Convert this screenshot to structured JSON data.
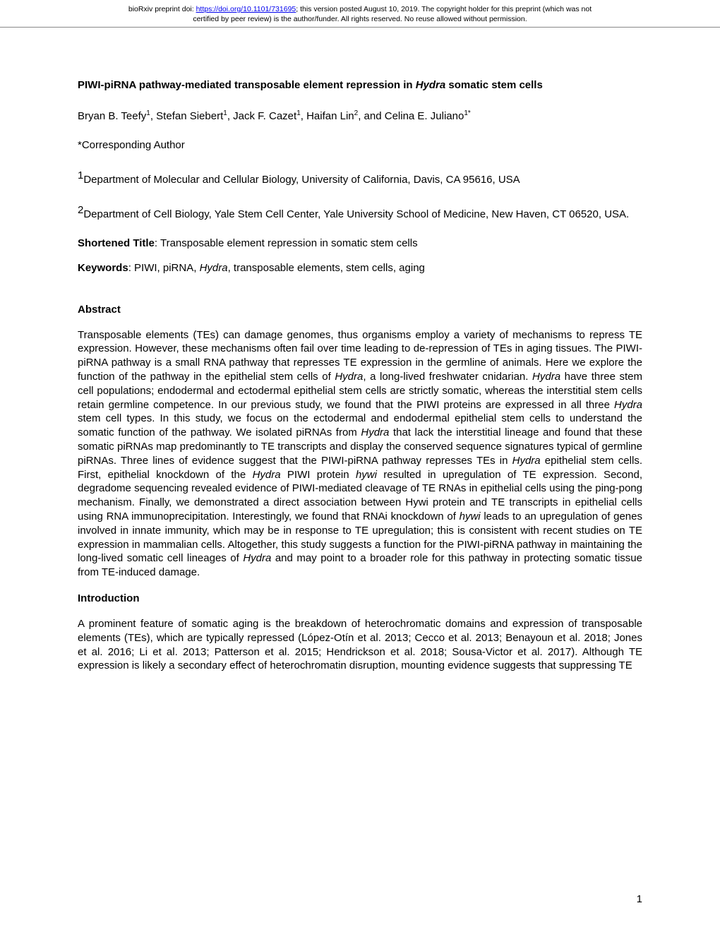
{
  "header": {
    "line1_pre": "bioRxiv preprint doi: ",
    "doi_url": "https://doi.org/10.1101/731695",
    "line1_post": "; this version posted August 10, 2019. The copyright holder for this preprint (which was not",
    "line2": "certified by peer review) is the author/funder. All rights reserved. No reuse allowed without permission."
  },
  "title": {
    "part1": "PIWI-piRNA pathway-mediated transposable element repression in ",
    "italic": "Hydra",
    "part2": " somatic stem cells"
  },
  "authors": {
    "a1": "Bryan B. Teefy",
    "s1": "1",
    "a2": ", Stefan Siebert",
    "s2": "1",
    "a3": ", Jack F. Cazet",
    "s3": "1",
    "a4": ", Haifan Lin",
    "s4": "2",
    "a5": ", and Celina E. Juliano",
    "s5": "1*"
  },
  "corresponding": "*Corresponding Author",
  "affil1": {
    "num": "1",
    "text": "Department of Molecular and Cellular Biology, University of California, Davis, CA 95616, USA"
  },
  "affil2": {
    "num": "2",
    "text": "Department of Cell Biology, Yale Stem Cell Center, Yale University School of Medicine, New Haven, CT 06520, USA."
  },
  "shortened": {
    "label": "Shortened Title",
    "text": ": Transposable element repression in somatic stem cells"
  },
  "keywords": {
    "label": "Keywords",
    "pre": ": PIWI, piRNA, ",
    "italic": "Hydra",
    "post": ", transposable elements, stem cells, aging"
  },
  "abstract": {
    "heading": "Abstract",
    "p1a": "Transposable elements (TEs) can damage genomes, thus organisms employ a variety of mechanisms to repress TE expression. However, these mechanisms often fail over time leading to de-repression of TEs in aging tissues. The PIWI-piRNA pathway is a small RNA pathway that represses TE expression in the germline of animals. Here we explore the function of the pathway in the epithelial stem cells of ",
    "p1_i1": "Hydra",
    "p1b": ", a long-lived freshwater cnidarian. ",
    "p1_i2": "Hydra",
    "p1c": " have three stem cell populations; endodermal and ectodermal epithelial stem cells are strictly somatic, whereas the interstitial stem cells retain germline competence. In our previous study, we found that the PIWI proteins are expressed in all three ",
    "p1_i3": "Hydra",
    "p1d": " stem cell types. In this study, we focus on the ectodermal and endodermal epithelial stem cells to understand the somatic function of the pathway. We isolated piRNAs from ",
    "p1_i4": "Hydra",
    "p1e": " that lack the interstitial lineage and found that these somatic piRNAs map predominantly to TE transcripts and display the conserved sequence signatures typical of germline piRNAs. Three lines of evidence suggest that the PIWI-piRNA pathway represses TEs in ",
    "p1_i5": "Hydra",
    "p1f": " epithelial stem cells. First, epithelial knockdown of the ",
    "p1_i6": "Hydra",
    "p1g": " PIWI protein ",
    "p1_i7": "hywi",
    "p1h": " resulted in upregulation of TE expression. Second, degradome sequencing revealed evidence of PIWI-mediated cleavage of TE RNAs in epithelial cells using the ping-pong mechanism. Finally, we demonstrated a direct association between Hywi protein and TE transcripts in epithelial cells using RNA immunoprecipitation. Interestingly, we found that RNAi knockdown of ",
    "p1_i8": "hywi",
    "p1i": " leads to an upregulation of genes involved in innate immunity, which may be in response to TE upregulation; this is consistent with recent studies on TE expression in mammalian cells. Altogether, this study suggests a function for the PIWI-piRNA pathway in maintaining the long-lived somatic cell lineages of ",
    "p1_i9": "Hydra",
    "p1j": " and may point to a broader role for this pathway in protecting somatic tissue from TE-induced damage."
  },
  "intro": {
    "heading": "Introduction",
    "p1": "A prominent feature of somatic aging is the breakdown of heterochromatic domains and expression of transposable elements (TEs), which are typically repressed (López-Otín et al. 2013; Cecco et al. 2013; Benayoun et al. 2018; Jones et al. 2016; Li et al. 2013; Patterson et al. 2015; Hendrickson et al. 2018; Sousa-Victor et al. 2017). Although TE expression is likely a secondary effect of heterochromatin disruption, mounting evidence suggests that suppressing TE"
  },
  "pageNumber": "1"
}
